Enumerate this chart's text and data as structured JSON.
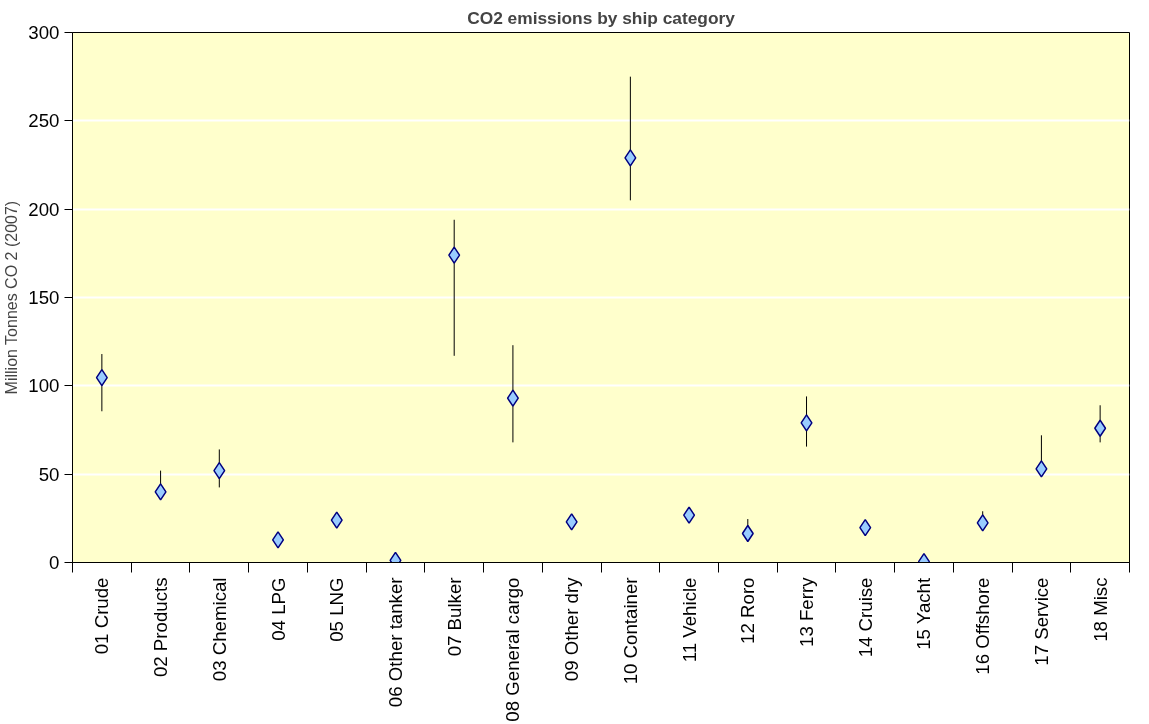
{
  "chart_data": {
    "type": "scatter",
    "title": "CO2 emissions by ship category",
    "ylabel": "Million Tonnes CO 2 (2007)",
    "categories": [
      "01 Crude",
      "02 Products",
      "03 Chemical",
      "04 LPG",
      "05 LNG",
      "06 Other tanker",
      "07 Bulker",
      "08 General cargo",
      "09 Other dry",
      "10 Container",
      "11 Vehicle",
      "12 Roro",
      "13 Ferry",
      "14 Cruise",
      "15 Yacht",
      "16 Offshore",
      "17 Service",
      "18 Misc"
    ],
    "series": [
      {
        "color": "#99ccff",
        "values": [
          104.6,
          40,
          52,
          12.8,
          24,
          1.2,
          174,
          93,
          23,
          229,
          26.8,
          16.4,
          79,
          19.7,
          0.5,
          22.4,
          53,
          76
        ],
        "errors": [
          [
            85.6,
            118
          ],
          [
            40,
            52
          ],
          [
            42.5,
            64
          ],
          null,
          null,
          null,
          [
            117,
            194
          ],
          [
            68,
            123
          ],
          null,
          [
            205,
            275
          ],
          null,
          [
            16.4,
            24.6
          ],
          [
            65.6,
            94
          ],
          null,
          null,
          [
            22.4,
            29
          ],
          [
            53,
            72
          ],
          [
            68,
            89
          ]
        ]
      }
    ],
    "ylim": [
      0,
      300
    ],
    "yticks": [
      0,
      50,
      100,
      150,
      200,
      250,
      300
    ],
    "grid": "y",
    "marker": "diamond"
  }
}
